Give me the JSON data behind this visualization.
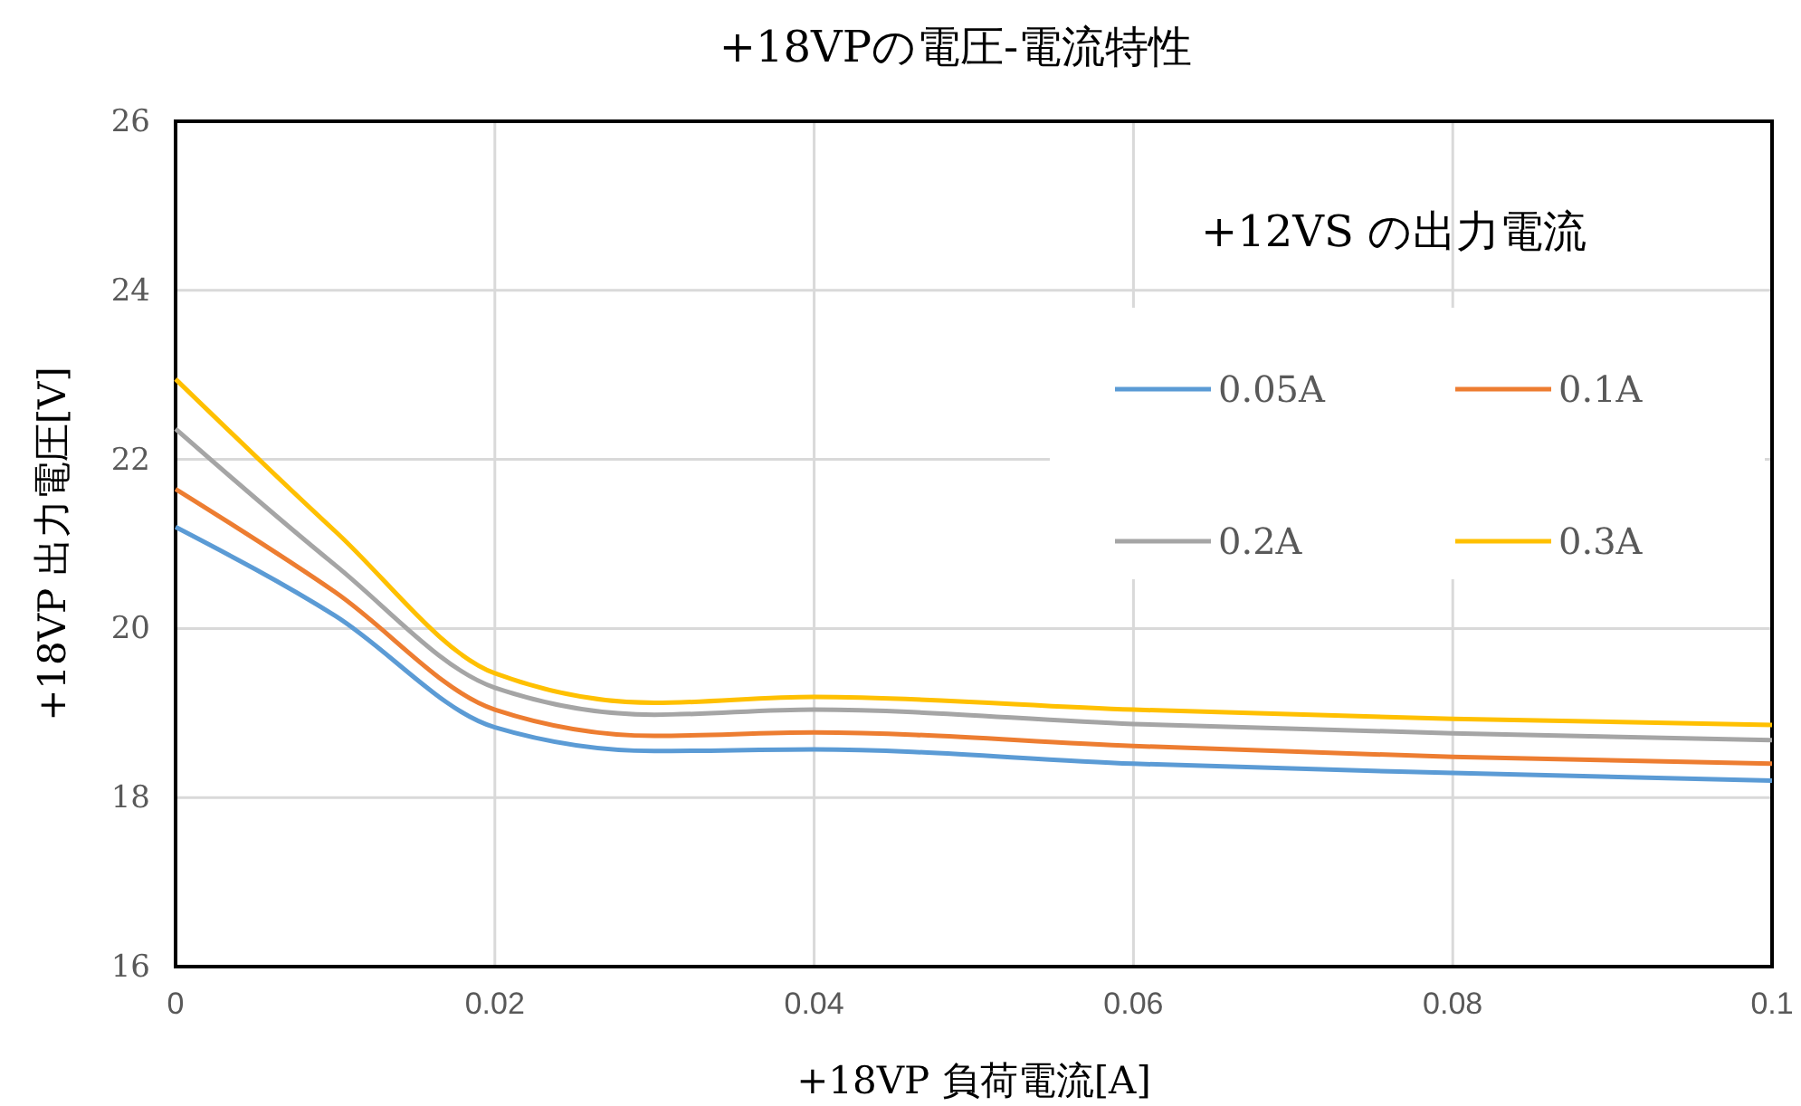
{
  "chart_data": {
    "type": "line",
    "title": "+18VPの電圧-電流特性",
    "xlabel": "+18VP 負荷電流[A]",
    "ylabel": "+18VP 出力電圧[V]",
    "legend_title": "+12VS の出力電流",
    "x": [
      0,
      0.01,
      0.02,
      0.03,
      0.04,
      0.06,
      0.08,
      0.1
    ],
    "series": [
      {
        "name": "0.05A",
        "color": "#5b9bd5",
        "values": [
          21.2,
          20.15,
          18.83,
          18.55,
          18.57,
          18.4,
          18.29,
          18.2
        ]
      },
      {
        "name": "0.1A",
        "color": "#ed7d31",
        "values": [
          21.65,
          20.43,
          19.04,
          18.73,
          18.77,
          18.61,
          18.48,
          18.4
        ]
      },
      {
        "name": "0.2A",
        "color": "#a5a5a5",
        "values": [
          22.36,
          20.75,
          19.3,
          18.98,
          19.04,
          18.87,
          18.76,
          18.68
        ]
      },
      {
        "name": "0.3A",
        "color": "#ffc000",
        "values": [
          22.95,
          21.15,
          19.47,
          19.12,
          19.19,
          19.04,
          18.93,
          18.86
        ]
      }
    ],
    "xlim": [
      0,
      0.1
    ],
    "xticks": [
      {
        "value": 0,
        "label": "0"
      },
      {
        "value": 0.02,
        "label": "0.02"
      },
      {
        "value": 0.04,
        "label": "0.04"
      },
      {
        "value": 0.06,
        "label": "0.06"
      },
      {
        "value": 0.08,
        "label": "0.08"
      },
      {
        "value": 0.1,
        "label": "0.1"
      }
    ],
    "ylim": [
      16,
      26
    ],
    "yticks": [
      16,
      18,
      20,
      22,
      24,
      26
    ],
    "grid": true,
    "legend": "top right",
    "marker": "none",
    "line_style": "solid"
  }
}
